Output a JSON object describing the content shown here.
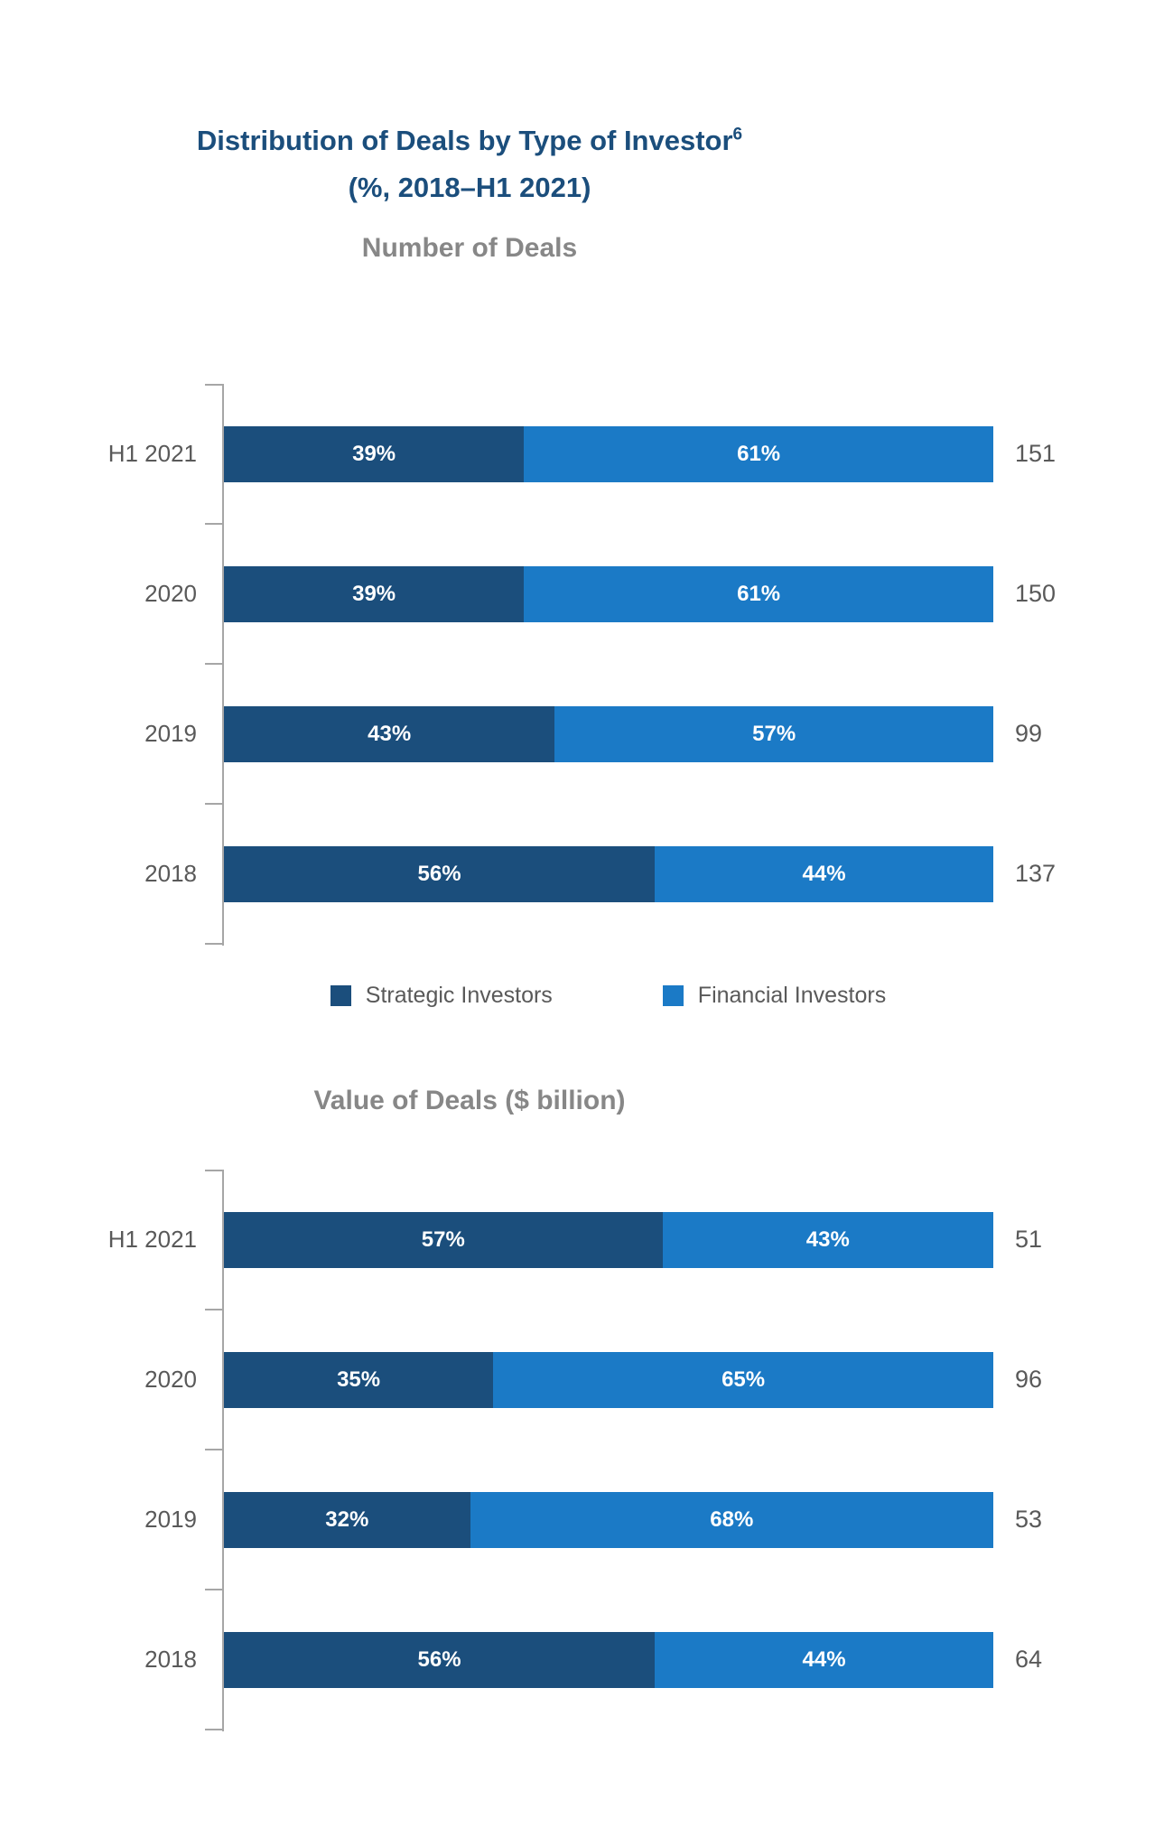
{
  "header": {
    "title": "Distribution of Deals by Type of Investor",
    "title_superscript": "6",
    "subtitle": "(%, 2018–H1 2021)"
  },
  "legend": {
    "items": [
      {
        "label": "Strategic Investors",
        "color": "#1b4e7c"
      },
      {
        "label": "Financial Investors",
        "color": "#1b7ac6"
      }
    ]
  },
  "colors": {
    "title_navy": "#1b4e7c",
    "strategic_dark_blue": "#1b4e7c",
    "financial_light_blue": "#1b7ac6",
    "section_title_gray": "#878787",
    "axis_gray": "#a6a6a6",
    "label_gray": "#595959",
    "bar_value_text": "#ffffff"
  },
  "chart_data": [
    {
      "type": "bar",
      "orientation": "horizontal",
      "stacked": "percent",
      "title": "Number of Deals",
      "categories": [
        "H1 2021",
        "2020",
        "2019",
        "2018"
      ],
      "series": [
        {
          "name": "Strategic Investors",
          "color": "#1b4e7c",
          "values": [
            39,
            39,
            43,
            56
          ]
        },
        {
          "name": "Financial Investors",
          "color": "#1b7ac6",
          "values": [
            61,
            61,
            57,
            44
          ]
        }
      ],
      "totals": [
        151,
        150,
        99,
        137
      ],
      "value_suffix": "%",
      "xlim": [
        0,
        100
      ],
      "grid": false,
      "legend_position": "below"
    },
    {
      "type": "bar",
      "orientation": "horizontal",
      "stacked": "percent",
      "title": "Value of Deals ($ billion)",
      "categories": [
        "H1 2021",
        "2020",
        "2019",
        "2018"
      ],
      "series": [
        {
          "name": "Strategic Investors",
          "color": "#1b4e7c",
          "values": [
            57,
            35,
            32,
            56
          ]
        },
        {
          "name": "Financial Investors",
          "color": "#1b7ac6",
          "values": [
            43,
            65,
            68,
            44
          ]
        }
      ],
      "totals": [
        51,
        96,
        53,
        64
      ],
      "value_suffix": "%",
      "xlim": [
        0,
        100
      ],
      "grid": false
    }
  ]
}
